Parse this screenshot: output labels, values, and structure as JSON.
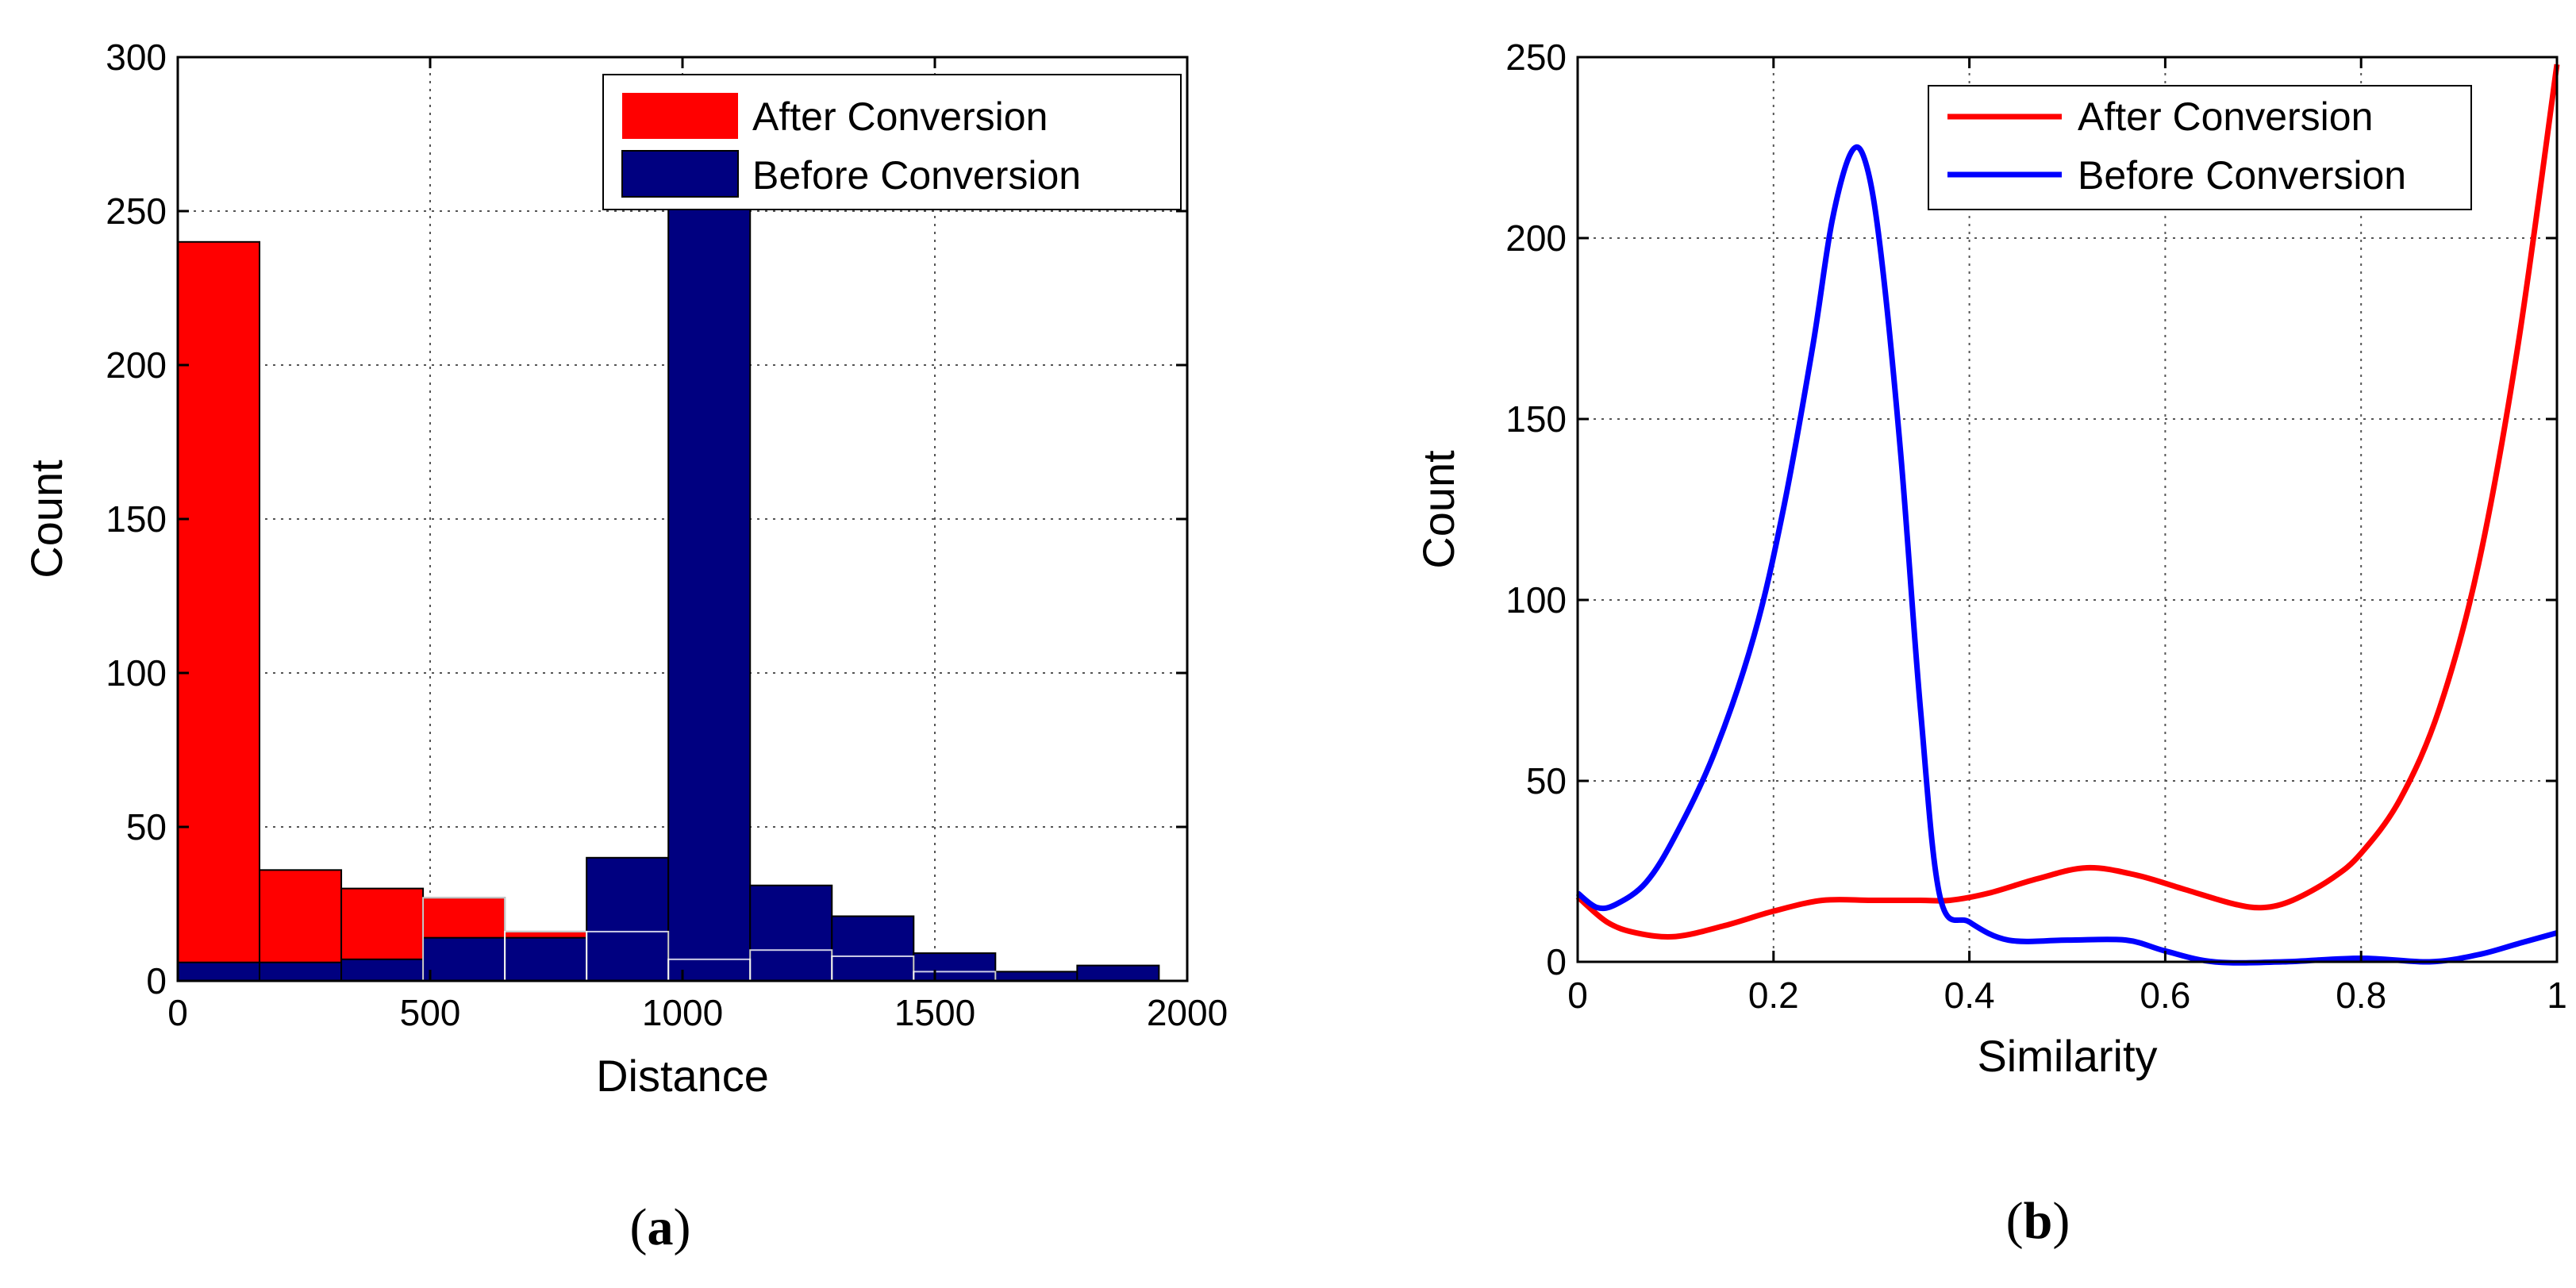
{
  "chart_data": [
    {
      "type": "histogram",
      "panel": "(a)",
      "caption_letter": "a",
      "xlabel": "Distance",
      "ylabel": "Count",
      "xlim": [
        0,
        2000
      ],
      "ylim": [
        0,
        300
      ],
      "xticks": [
        0,
        500,
        1000,
        1500,
        2000
      ],
      "yticks": [
        0,
        50,
        100,
        150,
        200,
        250,
        300
      ],
      "grid": true,
      "legend_position": "top-right",
      "bin_width": 162,
      "series": [
        {
          "name": "After Conversion",
          "color": "#ff0000",
          "bins": [
            {
              "x0": 0,
              "x1": 162,
              "value": 240
            },
            {
              "x0": 162,
              "x1": 324,
              "value": 36
            },
            {
              "x0": 324,
              "x1": 486,
              "value": 30
            },
            {
              "x0": 486,
              "x1": 648,
              "value": 27
            },
            {
              "x0": 648,
              "x1": 810,
              "value": 16
            },
            {
              "x0": 810,
              "x1": 972,
              "value": 16
            },
            {
              "x0": 972,
              "x1": 1134,
              "value": 7
            },
            {
              "x0": 1134,
              "x1": 1296,
              "value": 10
            },
            {
              "x0": 1296,
              "x1": 1458,
              "value": 8
            },
            {
              "x0": 1458,
              "x1": 1620,
              "value": 3
            }
          ]
        },
        {
          "name": "Before Conversion",
          "color": "#000080",
          "bins": [
            {
              "x0": 0,
              "x1": 162,
              "value": 6
            },
            {
              "x0": 162,
              "x1": 324,
              "value": 6
            },
            {
              "x0": 324,
              "x1": 486,
              "value": 7
            },
            {
              "x0": 486,
              "x1": 648,
              "value": 14
            },
            {
              "x0": 648,
              "x1": 810,
              "value": 14
            },
            {
              "x0": 810,
              "x1": 972,
              "value": 40
            },
            {
              "x0": 972,
              "x1": 1134,
              "value": 262
            },
            {
              "x0": 1134,
              "x1": 1296,
              "value": 31
            },
            {
              "x0": 1296,
              "x1": 1458,
              "value": 21
            },
            {
              "x0": 1458,
              "x1": 1620,
              "value": 9
            },
            {
              "x0": 1620,
              "x1": 1782,
              "value": 3
            },
            {
              "x0": 1782,
              "x1": 1944,
              "value": 5
            }
          ]
        }
      ]
    },
    {
      "type": "line",
      "panel": "(b)",
      "caption_letter": "b",
      "xlabel": "Similarity",
      "ylabel": "Count",
      "xlim": [
        0,
        1
      ],
      "ylim": [
        0,
        250
      ],
      "xticks": [
        0,
        0.2,
        0.4,
        0.6,
        0.8,
        1
      ],
      "yticks": [
        0,
        50,
        100,
        150,
        200,
        250
      ],
      "grid": true,
      "legend_position": "top-right",
      "series": [
        {
          "name": "After Conversion",
          "color": "#ff0000",
          "points": [
            [
              0,
              18
            ],
            [
              0.03,
              11
            ],
            [
              0.06,
              8
            ],
            [
              0.1,
              7
            ],
            [
              0.15,
              10
            ],
            [
              0.2,
              14
            ],
            [
              0.25,
              17
            ],
            [
              0.3,
              17
            ],
            [
              0.35,
              17
            ],
            [
              0.38,
              17
            ],
            [
              0.42,
              19
            ],
            [
              0.47,
              23
            ],
            [
              0.52,
              26
            ],
            [
              0.57,
              24
            ],
            [
              0.62,
              20
            ],
            [
              0.67,
              16
            ],
            [
              0.7,
              15
            ],
            [
              0.73,
              17
            ],
            [
              0.77,
              23
            ],
            [
              0.8,
              30
            ],
            [
              0.84,
              45
            ],
            [
              0.88,
              70
            ],
            [
              0.92,
              110
            ],
            [
              0.96,
              170
            ],
            [
              1,
              248
            ]
          ]
        },
        {
          "name": "Before Conversion",
          "color": "#0000ff",
          "points": [
            [
              0,
              19
            ],
            [
              0.02,
              15
            ],
            [
              0.04,
              16
            ],
            [
              0.07,
              22
            ],
            [
              0.1,
              35
            ],
            [
              0.14,
              58
            ],
            [
              0.18,
              90
            ],
            [
              0.21,
              125
            ],
            [
              0.24,
              170
            ],
            [
              0.26,
              205
            ],
            [
              0.28,
              224
            ],
            [
              0.295,
              220
            ],
            [
              0.31,
              195
            ],
            [
              0.33,
              140
            ],
            [
              0.35,
              70
            ],
            [
              0.37,
              18
            ],
            [
              0.4,
              11
            ],
            [
              0.44,
              6
            ],
            [
              0.5,
              6
            ],
            [
              0.56,
              6
            ],
            [
              0.6,
              3
            ],
            [
              0.65,
              0
            ],
            [
              0.72,
              0
            ],
            [
              0.8,
              1
            ],
            [
              0.87,
              0
            ],
            [
              0.92,
              2
            ],
            [
              0.96,
              5
            ],
            [
              1,
              8
            ]
          ]
        }
      ]
    }
  ]
}
